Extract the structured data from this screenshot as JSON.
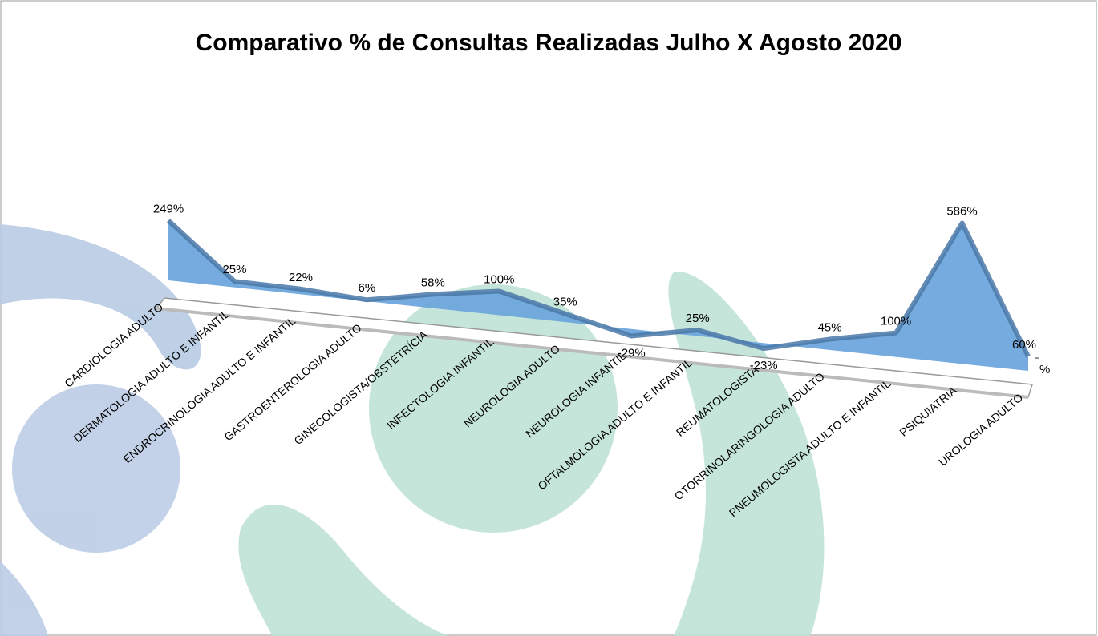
{
  "chart_data": {
    "type": "area3d",
    "title": "Comparativo % de Consultas Realizadas Julho X Agosto 2020",
    "categories": [
      "CARDIOLOGIA ADULTO",
      "DERMATOLOGIA ADULTO E INFANTIL",
      "ENDROCRINOLOGIA ADULTO E INFANTIL",
      "GASTROENTEROLOGIA ADULTO",
      "GINECOLOGISTA/OBSTETRÍCIA",
      "INFECTOLOGIA INFANTIL",
      "NEUROLOGIA ADULTO",
      "NEUROLOGIA INFANTIL",
      "OFTALMOLOGIA ADULTO E INFANTIL",
      "REUMATOLOGISTA",
      "OTORRINOLARINGOLOGIA ADULTO",
      "PNEUMOLOGISTA ADULTO E INFANTIL",
      "PSIQUIATRIA",
      "UROLOGIA ADULTO"
    ],
    "series": [
      {
        "name": "%",
        "color": "#6ea6dc",
        "values": [
          249,
          25,
          22,
          6,
          58,
          100,
          35,
          -29,
          25,
          -23,
          45,
          100,
          586,
          60
        ],
        "value_labels": [
          "249%",
          "25%",
          "22%",
          "6%",
          "58%",
          "100%",
          "35%",
          "-29%",
          "25%",
          "-23%",
          "45%",
          "100%",
          "586%",
          "60%"
        ]
      }
    ],
    "legend": "right"
  }
}
